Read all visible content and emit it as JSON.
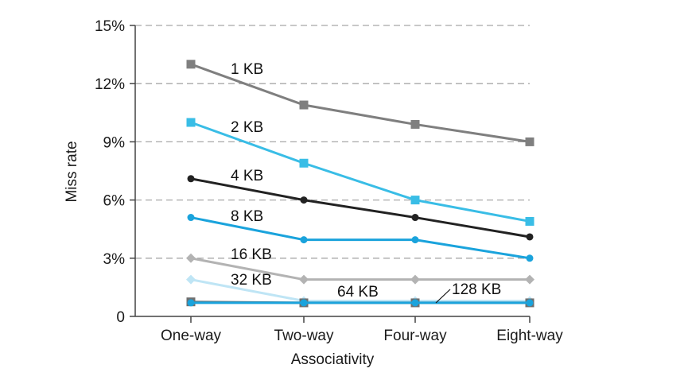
{
  "chart_data": {
    "type": "line",
    "title": "",
    "xlabel": "Associativity",
    "ylabel": "Miss rate",
    "categories": [
      "One-way",
      "Two-way",
      "Four-way",
      "Eight-way"
    ],
    "ylim": [
      0,
      15
    ],
    "yticks": [
      0,
      3,
      6,
      9,
      12,
      15
    ],
    "ytick_labels": [
      "0",
      "3%",
      "6%",
      "9%",
      "12%",
      "15%"
    ],
    "grid": true,
    "legend": "inline labels beside each line",
    "series": [
      {
        "name": "1 KB",
        "values": [
          13.0,
          10.9,
          9.9,
          9.0
        ],
        "color": "#7f7f7f",
        "marker": "square"
      },
      {
        "name": "2 KB",
        "values": [
          10.0,
          7.9,
          6.0,
          4.9
        ],
        "color": "#39bde6",
        "marker": "square"
      },
      {
        "name": "4 KB",
        "values": [
          7.1,
          6.0,
          5.1,
          4.1
        ],
        "color": "#222222",
        "marker": "circle"
      },
      {
        "name": "8 KB",
        "values": [
          5.1,
          3.95,
          3.95,
          3.0
        ],
        "color": "#1aa3dc",
        "marker": "circle"
      },
      {
        "name": "16 KB",
        "values": [
          3.0,
          1.9,
          1.9,
          1.9
        ],
        "color": "#b3b3b3",
        "marker": "diamond"
      },
      {
        "name": "32 KB",
        "values": [
          1.9,
          0.8,
          0.8,
          0.8
        ],
        "color": "#bfe5f5",
        "marker": "diamond"
      },
      {
        "name": "64 KB",
        "values": [
          0.75,
          0.7,
          0.7,
          0.7
        ],
        "color": "#6f6f6f",
        "marker": "square"
      },
      {
        "name": "128 KB",
        "values": [
          0.7,
          0.7,
          0.7,
          0.7
        ],
        "color": "#1aa3dc",
        "marker": "circle"
      }
    ]
  }
}
